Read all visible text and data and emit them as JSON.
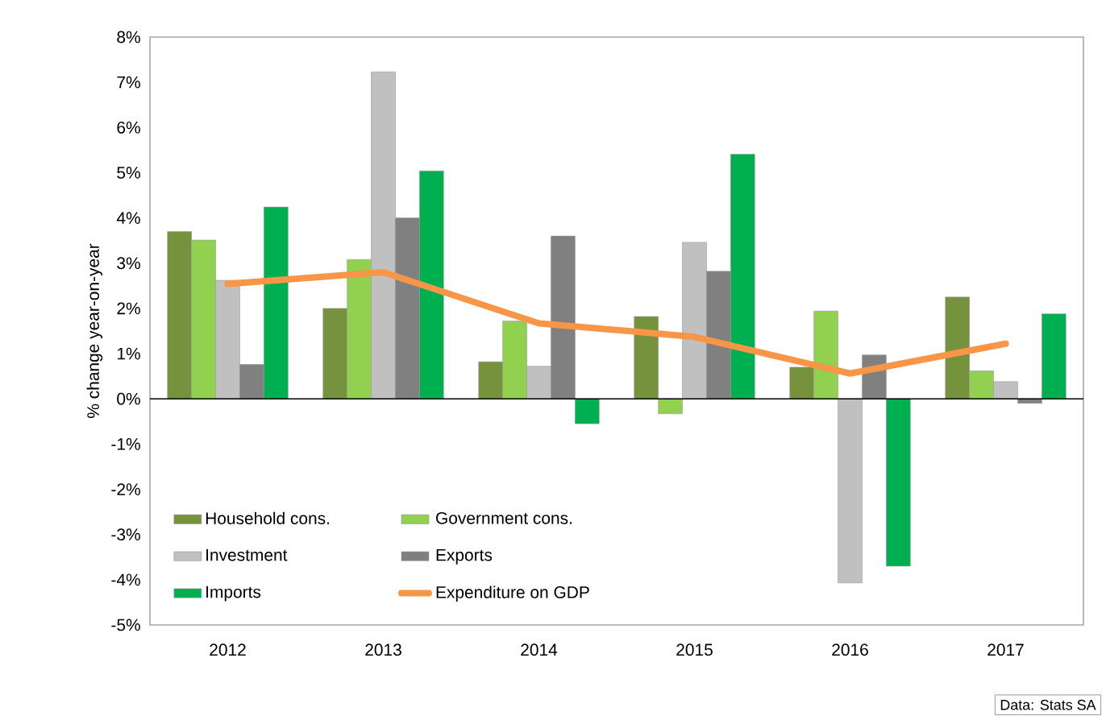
{
  "chart_data": {
    "type": "bar",
    "ylabel": "% change year-on-year",
    "categories": [
      "2012",
      "2013",
      "2014",
      "2015",
      "2016",
      "2017"
    ],
    "series": [
      {
        "name": "Household cons.",
        "color": "#76923c",
        "values": [
          3.7,
          2.0,
          0.82,
          1.82,
          0.7,
          2.25
        ]
      },
      {
        "name": "Government cons.",
        "color": "#92d050",
        "values": [
          3.51,
          3.08,
          1.72,
          -0.33,
          1.94,
          0.62
        ]
      },
      {
        "name": "Investment",
        "color": "#c0c0c0",
        "values": [
          2.62,
          7.23,
          0.72,
          3.46,
          -4.07,
          0.38
        ]
      },
      {
        "name": "Exports",
        "color": "#808080",
        "values": [
          0.76,
          4.0,
          3.6,
          2.82,
          0.97,
          -0.1
        ]
      },
      {
        "name": "Imports",
        "color": "#00b050",
        "values": [
          4.24,
          5.04,
          -0.55,
          5.41,
          -3.7,
          1.88
        ]
      },
      {
        "name": "Expenditure on GDP",
        "type": "line",
        "color": "#f79646",
        "values": [
          2.54,
          2.8,
          1.67,
          1.37,
          0.56,
          1.22
        ]
      }
    ],
    "ylim": [
      -5,
      8
    ],
    "yticks": [
      {
        "value": -5,
        "label": "-5%"
      },
      {
        "value": -4,
        "label": "-4%"
      },
      {
        "value": -3,
        "label": "-3%"
      },
      {
        "value": -2,
        "label": "-2%"
      },
      {
        "value": -1,
        "label": "-1%"
      },
      {
        "value": 0,
        "label": "0%"
      },
      {
        "value": 1,
        "label": "1%"
      },
      {
        "value": 2,
        "label": "2%"
      },
      {
        "value": 3,
        "label": "3%"
      },
      {
        "value": 4,
        "label": "4%"
      },
      {
        "value": 5,
        "label": "5%"
      },
      {
        "value": 6,
        "label": "6%"
      },
      {
        "value": 7,
        "label": "7%"
      },
      {
        "value": 8,
        "label": "8%"
      }
    ],
    "ref_lines": [
      {
        "axis": "y",
        "value": 0,
        "color": "#000000"
      }
    ],
    "grid": false,
    "legend": "bottom left",
    "marker": "none",
    "annotations": [
      "Data: Stats SA"
    ]
  }
}
